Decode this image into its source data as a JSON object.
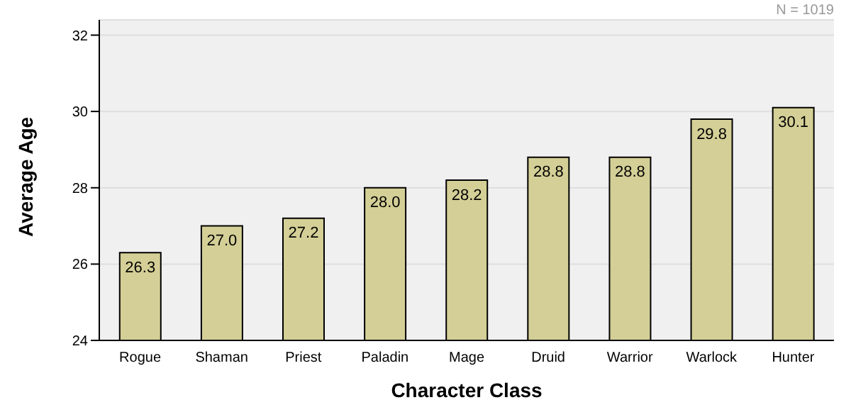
{
  "chart_data": {
    "type": "bar",
    "xlabel": "Character Class",
    "ylabel": "Average Age",
    "annotations": [
      "N = 1019"
    ],
    "categories": [
      "Rogue",
      "Shaman",
      "Priest",
      "Paladin",
      "Mage",
      "Druid",
      "Warrior",
      "Warlock",
      "Hunter"
    ],
    "values": [
      26.3,
      27.0,
      27.2,
      28.0,
      28.2,
      28.8,
      28.8,
      29.8,
      30.1
    ],
    "value_labels": [
      "26.3",
      "27.0",
      "27.2",
      "28.0",
      "28.2",
      "28.8",
      "28.8",
      "29.8",
      "30.1"
    ],
    "color": "#d4cf96",
    "ylim": [
      24,
      32.4
    ],
    "yticks": [
      24,
      26,
      28,
      30,
      32
    ],
    "grid": "y"
  }
}
